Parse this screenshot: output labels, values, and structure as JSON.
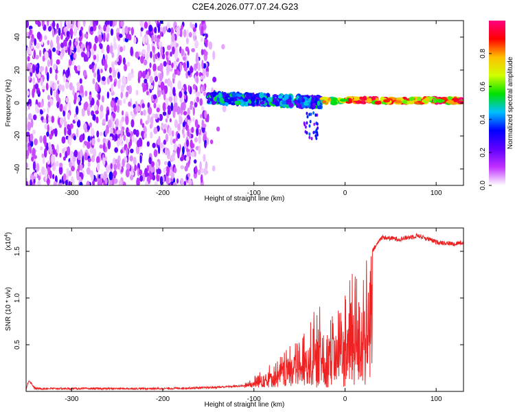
{
  "title": "C2E4.2026.077.07.24.G23",
  "chart_data": [
    {
      "type": "heatmap",
      "xlabel": "Height of straight line (km)",
      "ylabel": "Frequency (Hz)",
      "xlim": [
        -350,
        130
      ],
      "ylim": [
        -50,
        50
      ],
      "xticks": [
        -300,
        -200,
        -100,
        0,
        100
      ],
      "xtick_labels": [
        "-300",
        "-200",
        "-100",
        "0",
        "100"
      ],
      "yticks": [
        -40,
        -20,
        0,
        20,
        40
      ],
      "ytick_labels": [
        "-40",
        "-20",
        "0",
        "20",
        "40"
      ],
      "colorbar": {
        "label": "Normalized spectral amplitude",
        "range": [
          0,
          1
        ],
        "ticks": [
          0,
          0.2,
          0.4,
          0.6,
          0.8
        ],
        "tick_labels": [
          "0.0",
          "0.2",
          "0.4",
          "0.6",
          "0.8"
        ],
        "colors": [
          "#ffffff",
          "#c030ff",
          "#6000ff",
          "#0000ff",
          "#00c0ff",
          "#00e000",
          "#d0ff00",
          "#ffc000",
          "#ff0000",
          "#ff0080"
        ]
      },
      "regions": [
        {
          "x_range": [
            -350,
            -150
          ],
          "f_range": [
            -50,
            50
          ],
          "amplitude": 0.1
        },
        {
          "x_range": [
            -150,
            -25
          ],
          "f_range": [
            -5,
            10
          ],
          "amplitude": 0.35
        },
        {
          "x_range": [
            -25,
            130
          ],
          "f_range": [
            0,
            5
          ],
          "amplitude": 0.8
        }
      ]
    },
    {
      "type": "line",
      "xlabel": "Height of straight line (km)",
      "ylabel": "SNR (10 * v/v)",
      "ylabel_multiplier": "(x10",
      "ylabel_exponent": "4",
      "xlim": [
        -350,
        130
      ],
      "ylim": [
        0,
        1.75
      ],
      "xticks": [
        -300,
        -200,
        -100,
        0,
        100
      ],
      "xtick_labels": [
        "-300",
        "-200",
        "-100",
        "0",
        "100"
      ],
      "yticks": [
        0.5,
        1.0,
        1.5
      ],
      "ytick_labels": [
        "0.5",
        "1.0",
        "1.5"
      ],
      "color": "#ee2222",
      "series": [
        {
          "x": [
            -350,
            -347,
            -340,
            -300,
            -250,
            -200,
            -150,
            -110,
            -100,
            -90,
            -80,
            -70,
            -60,
            -50,
            -40,
            -30,
            -25,
            -20,
            -15,
            -10,
            0,
            10,
            20,
            30,
            40,
            60,
            80,
            100,
            120,
            130
          ],
          "y": [
            0.02,
            0.12,
            0.03,
            0.03,
            0.03,
            0.03,
            0.04,
            0.06,
            0.12,
            0.2,
            0.28,
            0.35,
            0.45,
            0.55,
            0.7,
            0.9,
            0.85,
            0.6,
            0.8,
            1.0,
            1.1,
            1.25,
            1.35,
            1.5,
            1.65,
            1.63,
            1.67,
            1.6,
            1.58,
            1.6
          ]
        }
      ]
    }
  ]
}
